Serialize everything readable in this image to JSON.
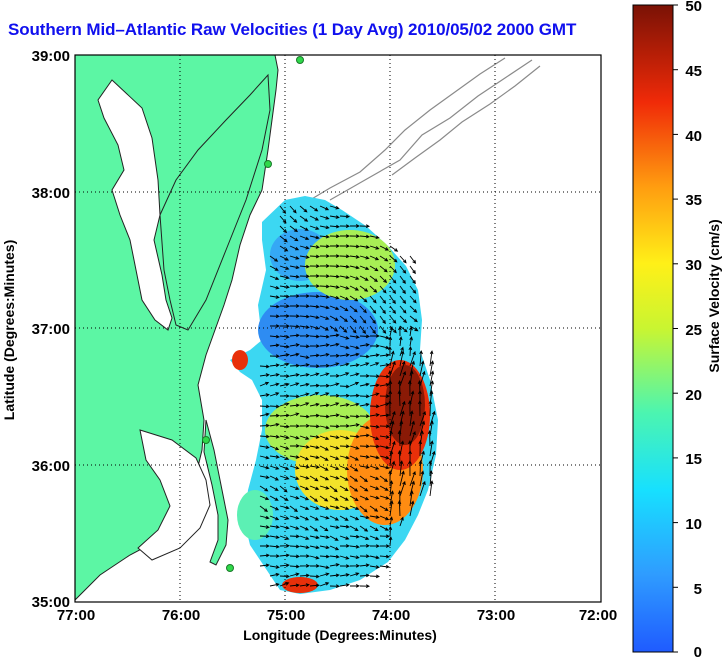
{
  "title": "Southern Mid–Atlantic Raw Velocities (1 Day Avg) 2010/05/02 2000 GMT",
  "x_axis": {
    "label": "Longitude (Degrees:Minutes)",
    "ticks": [
      "77:00",
      "76:00",
      "75:00",
      "74:00",
      "73:00",
      "72:00"
    ]
  },
  "y_axis": {
    "label": "Latitude (Degrees:Minutes)",
    "ticks": [
      "39:00",
      "38:00",
      "37:00",
      "36:00",
      "35:00"
    ]
  },
  "colorbar": {
    "label": "Surface Velocity (cm/s)",
    "min": 0,
    "max": 50,
    "ticks": [
      "50",
      "45",
      "40",
      "35",
      "30",
      "25",
      "20",
      "15",
      "10",
      "5",
      "0"
    ]
  },
  "colors": {
    "title": "#1010ee",
    "land": "#5cf6a4",
    "stations": "#2fd84a"
  },
  "map_extent": {
    "lon_west": -77,
    "lon_east": -72,
    "lat_south": 35,
    "lat_north": 39
  }
}
